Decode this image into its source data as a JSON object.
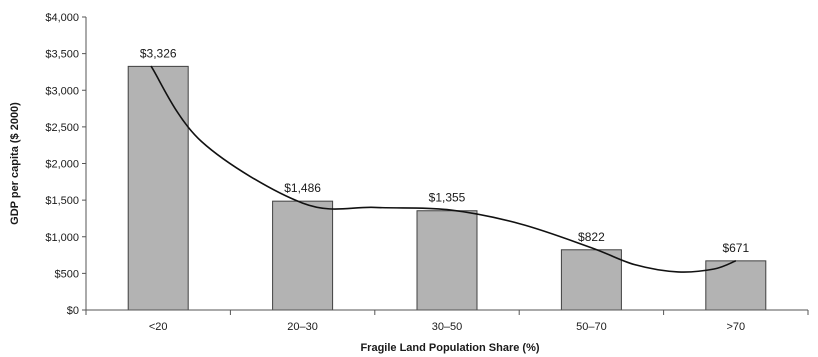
{
  "chart_data": {
    "type": "bar",
    "categories": [
      "<20",
      "20–30",
      "30–50",
      "50–70",
      ">70"
    ],
    "values": [
      3326,
      1486,
      1355,
      822,
      671
    ],
    "data_labels": [
      "$3,326",
      "$1,486",
      "$1,355",
      "$822",
      "$671"
    ],
    "title": "",
    "xlabel": "Fragile Land Population Share (%)",
    "ylabel": "GDP per capita ($ 2000)",
    "ylim": [
      0,
      4000
    ],
    "yticks": [
      0,
      500,
      1000,
      1500,
      2000,
      2500,
      3000,
      3500,
      4000
    ],
    "ytick_labels": [
      "$0",
      "$500",
      "$1,000",
      "$1,500",
      "$2,000",
      "$2,500",
      "$3,000",
      "$3,500",
      "$4,000"
    ],
    "trend_line": {
      "type": "smooth curve",
      "x": [
        -0.05,
        0.3,
        1.0,
        1.5,
        2.0,
        2.5,
        3.0,
        3.3,
        3.6,
        3.85,
        4.0
      ],
      "y": [
        3330,
        2300,
        1460,
        1400,
        1370,
        1180,
        850,
        620,
        520,
        560,
        671
      ]
    },
    "grid": false,
    "legend": "none",
    "colors": {
      "bar_fill": "#b3b3b3",
      "bar_stroke": "#404040",
      "trend_line": "#111111",
      "axis": "#555555"
    }
  }
}
